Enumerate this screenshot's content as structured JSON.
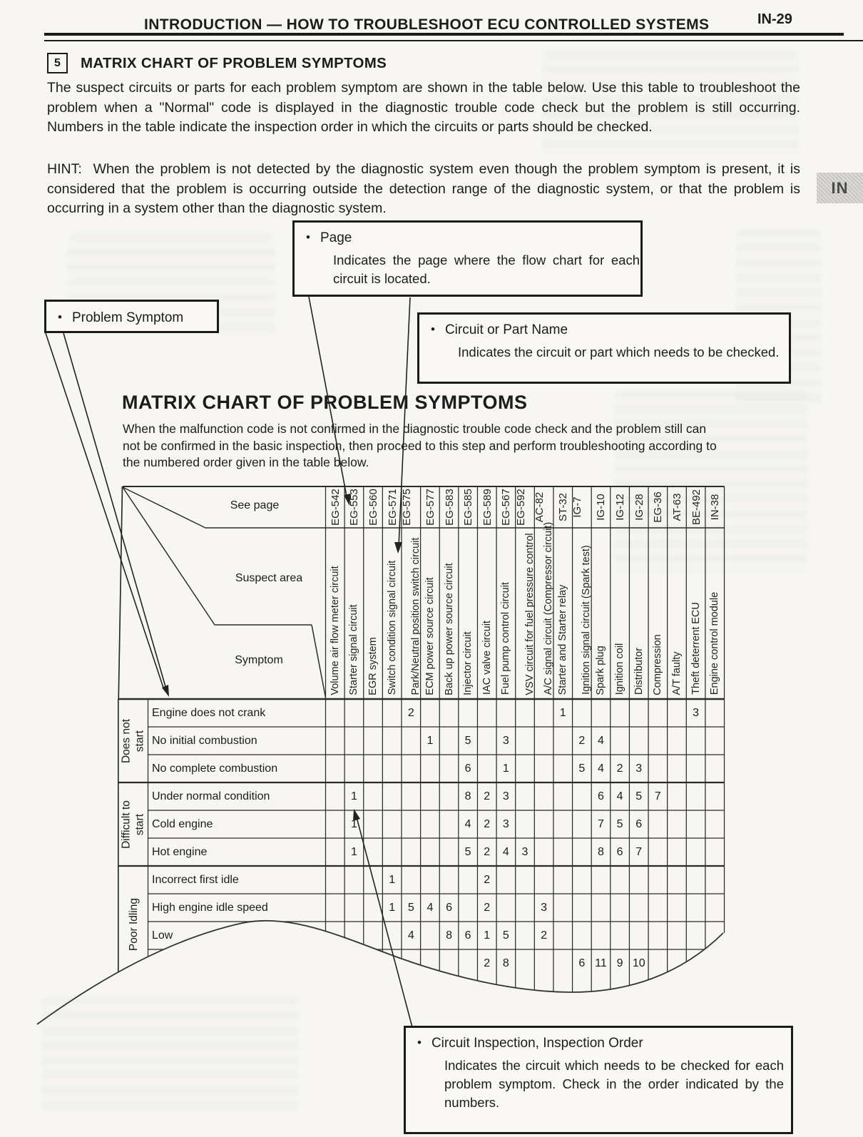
{
  "page": {
    "header_title": "INTRODUCTION — HOW TO TROUBLESHOOT ECU CONTROLLED SYSTEMS",
    "page_number": "IN-29",
    "side_tab": "IN"
  },
  "section": {
    "number": "5",
    "title": "MATRIX CHART OF PROBLEM SYMPTOMS",
    "body": "The suspect circuits or parts for each problem symptom are shown in the table below. Use this table to troubleshoot the problem when a \"Normal\" code is displayed in the diagnostic trouble code check but the problem is still occurring. Numbers in the table indicate the inspection order in which the circuits or parts should be checked.",
    "hint_label": "HINT:",
    "hint": "When the problem is not detected by the diagnostic system even though the problem symptom is present, it is considered that the problem is occurring outside the detection range of the diagnostic system, or that the problem is occurring in a system other than the diagnostic system."
  },
  "callouts": {
    "bullet": "•",
    "page_box": {
      "title": "Page",
      "body": "Indicates the page where the flow chart for each circuit is located."
    },
    "problem_symptom_box": {
      "title": "Problem Symptom"
    },
    "circuit_part_box": {
      "title": "Circuit or Part Name",
      "body": "Indicates the circuit or part which needs to be checked."
    },
    "inspection_box": {
      "title": "Circuit Inspection, Inspection Order",
      "body": "Indicates the circuit which needs to be checked for each problem symptom. Check in the order indicated by the numbers."
    }
  },
  "matrix": {
    "title": "MATRIX CHART OF PROBLEM SYMPTOMS",
    "intro": "When the malfunction code is not confirmed in the diagnostic trouble code check and the problem still can not be confirmed in the basic inspection, then proceed to this step and perform troubleshooting according to the numbered order given in the table below.",
    "corner": {
      "see_page": "See page",
      "suspect_area": "Suspect area",
      "symptom": "Symptom"
    },
    "columns": [
      {
        "page": "EG-542",
        "label": "Volume air flow meter circuit"
      },
      {
        "page": "EG-553",
        "label": "Starter signal circuit"
      },
      {
        "page": "EG-560",
        "label": "EGR system"
      },
      {
        "page": "EG-571",
        "label": "Switch condition signal circuit"
      },
      {
        "page": "EG-575",
        "label": "Park/Neutral position switch circuit"
      },
      {
        "page": "EG-577",
        "label": "ECM power source circuit"
      },
      {
        "page": "EG-583",
        "label": "Back up power source circuit"
      },
      {
        "page": "EG-585",
        "label": "Injector circuit"
      },
      {
        "page": "EG-589",
        "label": "IAC valve circuit"
      },
      {
        "page": "EG-567",
        "label": "Fuel pump control circuit"
      },
      {
        "page": "EG-592",
        "label": "VSV circuit for fuel pressure control"
      },
      {
        "page": "AC-82",
        "label": "A/C signal circuit (Compressor circuit)"
      },
      {
        "page": "ST-32",
        "label": "Starter and Starter relay"
      },
      {
        "page": "IG-7",
        "label": "Ignition signal circuit (Spark test)"
      },
      {
        "page": "IG-10",
        "label": "Spark plug"
      },
      {
        "page": "IG-12",
        "label": "Ignition coil"
      },
      {
        "page": "IG-28",
        "label": "Distributor"
      },
      {
        "page": "EG-36",
        "label": "Compression"
      },
      {
        "page": "AT-63",
        "label": "A/T faulty"
      },
      {
        "page": "BE-492",
        "label": "Theft deterrent ECU"
      },
      {
        "page": "IN-38",
        "label": "Engine control module"
      }
    ],
    "row_groups": [
      {
        "label": "Does not\nstart",
        "rows": [
          {
            "symptom": "Engine does not crank",
            "cells": [
              [
                5,
                "2"
              ],
              [
                13,
                "1"
              ],
              [
                20,
                "3"
              ]
            ]
          },
          {
            "symptom": "No initial combustion",
            "cells": [
              [
                6,
                "1"
              ],
              [
                8,
                "5"
              ],
              [
                10,
                "3"
              ],
              [
                14,
                "2"
              ],
              [
                15,
                "4"
              ]
            ]
          },
          {
            "symptom": "No complete combustion",
            "cells": [
              [
                8,
                "6"
              ],
              [
                10,
                "1"
              ],
              [
                14,
                "5"
              ],
              [
                15,
                "4"
              ],
              [
                16,
                "2"
              ],
              [
                17,
                "3"
              ]
            ]
          }
        ]
      },
      {
        "label": "Difficult to\nstart",
        "rows": [
          {
            "symptom": "Under normal condition",
            "cells": [
              [
                2,
                "1"
              ],
              [
                8,
                "8"
              ],
              [
                9,
                "2"
              ],
              [
                10,
                "3"
              ],
              [
                15,
                "6"
              ],
              [
                16,
                "4"
              ],
              [
                17,
                "5"
              ],
              [
                18,
                "7"
              ]
            ]
          },
          {
            "symptom": "Cold engine",
            "cells": [
              [
                2,
                "1"
              ],
              [
                8,
                "4"
              ],
              [
                9,
                "2"
              ],
              [
                10,
                "3"
              ],
              [
                15,
                "7"
              ],
              [
                16,
                "5"
              ],
              [
                17,
                "6"
              ]
            ]
          },
          {
            "symptom": "Hot engine",
            "cells": [
              [
                2,
                "1"
              ],
              [
                8,
                "5"
              ],
              [
                9,
                "2"
              ],
              [
                10,
                "4"
              ],
              [
                11,
                "3"
              ],
              [
                15,
                "8"
              ],
              [
                16,
                "6"
              ],
              [
                17,
                "7"
              ]
            ]
          }
        ]
      },
      {
        "label": "Poor Idling",
        "rows": [
          {
            "symptom": "Incorrect first idle",
            "cells": [
              [
                4,
                "1"
              ],
              [
                9,
                "2"
              ]
            ]
          },
          {
            "symptom": "High engine idle speed",
            "cells": [
              [
                4,
                "1"
              ],
              [
                5,
                "5"
              ],
              [
                6,
                "4"
              ],
              [
                7,
                "6"
              ],
              [
                9,
                "2"
              ],
              [
                12,
                "3"
              ]
            ]
          },
          {
            "symptom": "Low",
            "cells": [
              [
                5,
                "4"
              ],
              [
                7,
                "8"
              ],
              [
                8,
                "6"
              ],
              [
                9,
                "1"
              ],
              [
                10,
                "5"
              ],
              [
                12,
                "2"
              ]
            ]
          },
          {
            "symptom": "",
            "cells": [
              [
                9,
                "2"
              ],
              [
                10,
                "8"
              ],
              [
                14,
                "6"
              ],
              [
                15,
                "11"
              ],
              [
                16,
                "9"
              ],
              [
                17,
                "10"
              ]
            ]
          }
        ]
      }
    ]
  }
}
